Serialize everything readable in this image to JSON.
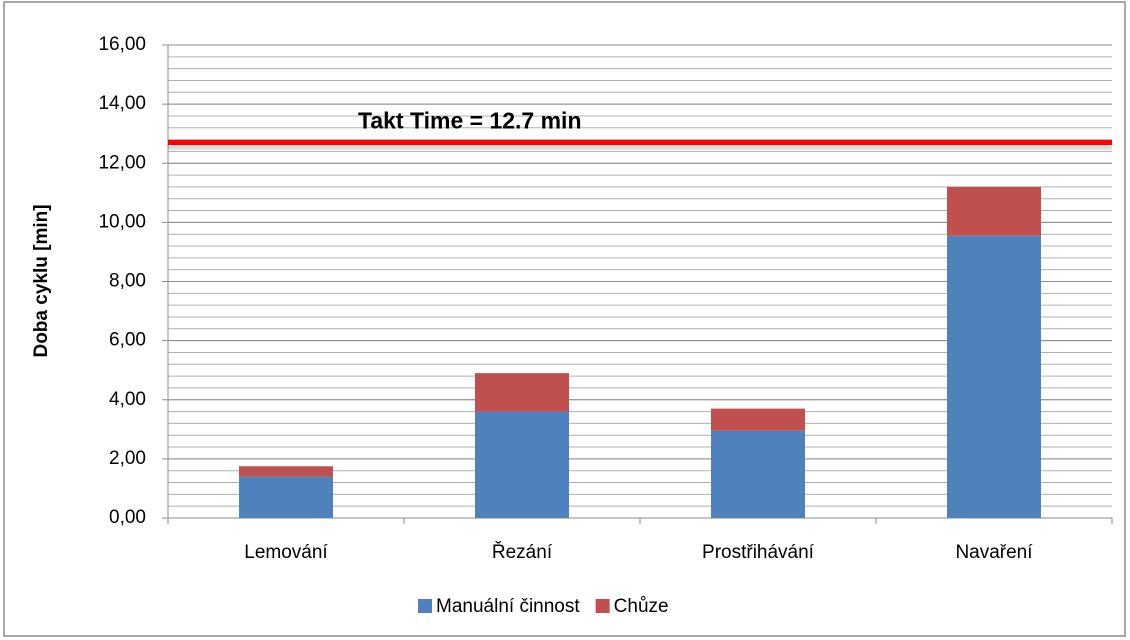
{
  "chart_data": {
    "type": "stacked_bar",
    "ylabel": "Doba cyklu [min]",
    "categories": [
      "Lemování",
      "Řezání",
      "Prostřihávání",
      "Navaření"
    ],
    "series": [
      {
        "name": "Manuální činnost",
        "color": "#4f81bd",
        "values": [
          1.4,
          3.6,
          2.95,
          9.55
        ]
      },
      {
        "name": "Chůze",
        "color": "#c0504d",
        "values": [
          0.35,
          1.3,
          0.75,
          1.65
        ]
      }
    ],
    "ylim": [
      0,
      16
    ],
    "yticks": [
      {
        "value": 0,
        "label": "0,00"
      },
      {
        "value": 2,
        "label": "2,00"
      },
      {
        "value": 4,
        "label": "4,00"
      },
      {
        "value": 6,
        "label": "6,00"
      },
      {
        "value": 8,
        "label": "8,00"
      },
      {
        "value": 10,
        "label": "10,00"
      },
      {
        "value": 12,
        "label": "12,00"
      },
      {
        "value": 14,
        "label": "14,00"
      },
      {
        "value": 16,
        "label": "16,00"
      }
    ],
    "grid": true,
    "minor_grid_step": 0.4,
    "reference_line": {
      "value": 12.7,
      "label": "Takt Time = 12.7 min",
      "color": "#ff0000"
    },
    "legend": "bottom"
  }
}
